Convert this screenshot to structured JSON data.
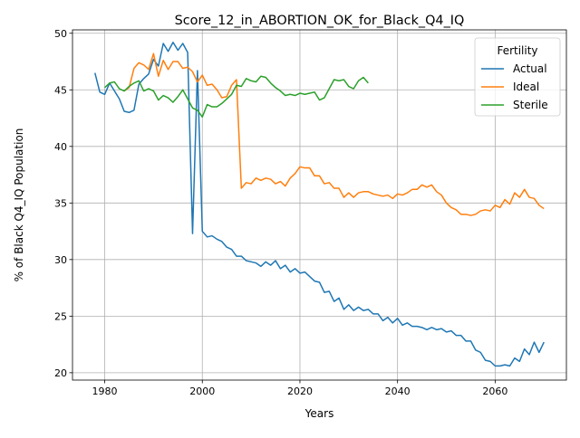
{
  "chart_data": {
    "type": "line",
    "title": "Score_12_in_ABORTION_OK_for_Black_Q4_IQ",
    "xlabel": "Years",
    "ylabel": "% of Black Q4_IQ Population",
    "xlim": [
      1973.4,
      2074.6
    ],
    "ylim": [
      19.35,
      50.3
    ],
    "xticks": [
      1980,
      2000,
      2020,
      2040,
      2060
    ],
    "yticks": [
      20,
      25,
      30,
      35,
      40,
      45,
      50
    ],
    "grid": true,
    "legend": {
      "title": "Fertility",
      "placement": "upper right"
    },
    "series": [
      {
        "name": "Actual",
        "color": "#1f77b4",
        "x": [
          1978,
          1979,
          1980,
          1981,
          1982,
          1983,
          1984,
          1985,
          1986,
          1987,
          1988,
          1989,
          1990,
          1991,
          1992,
          1993,
          1994,
          1995,
          1996,
          1997,
          1998,
          1999,
          2000,
          2001,
          2002,
          2003,
          2004,
          2005,
          2006,
          2007,
          2008,
          2009,
          2010,
          2011,
          2012,
          2013,
          2014,
          2015,
          2016,
          2017,
          2018,
          2019,
          2020,
          2021,
          2022,
          2023,
          2024,
          2025,
          2026,
          2027,
          2028,
          2029,
          2030,
          2031,
          2032,
          2033,
          2034,
          2035,
          2036,
          2037,
          2038,
          2039,
          2040,
          2041,
          2042,
          2043,
          2044,
          2045,
          2046,
          2047,
          2048,
          2049,
          2050,
          2051,
          2052,
          2053,
          2054,
          2055,
          2056,
          2057,
          2058,
          2059,
          2060,
          2061,
          2062,
          2063,
          2064,
          2065,
          2066,
          2067,
          2068,
          2069,
          2070
        ],
        "values": [
          46.5,
          44.8,
          44.6,
          45.6,
          44.9,
          44.2,
          43.1,
          43.0,
          43.2,
          45.5,
          46.0,
          46.4,
          47.7,
          47.1,
          49.1,
          48.4,
          49.2,
          48.5,
          49.1,
          48.3,
          32.3,
          46.7,
          32.5,
          32.0,
          32.1,
          31.8,
          31.6,
          31.1,
          30.9,
          30.3,
          30.3,
          29.9,
          29.8,
          29.7,
          29.4,
          29.8,
          29.5,
          29.9,
          29.2,
          29.5,
          28.9,
          29.2,
          28.8,
          28.9,
          28.5,
          28.1,
          28.0,
          27.1,
          27.2,
          26.3,
          26.6,
          25.6,
          26.0,
          25.5,
          25.8,
          25.5,
          25.6,
          25.2,
          25.2,
          24.6,
          24.9,
          24.4,
          24.8,
          24.2,
          24.4,
          24.1,
          24.1,
          24.0,
          23.8,
          24.0,
          23.8,
          23.9,
          23.6,
          23.7,
          23.3,
          23.3,
          22.8,
          22.8,
          22.0,
          21.8,
          21.1,
          21.0,
          20.6,
          20.6,
          20.7,
          20.6,
          21.3,
          21.0,
          22.1,
          21.6,
          22.7,
          21.8,
          22.7
        ]
      },
      {
        "name": "Ideal",
        "color": "#ff7f0e",
        "x": [
          1984,
          1985,
          1986,
          1987,
          1988,
          1989,
          1990,
          1991,
          1992,
          1993,
          1994,
          1995,
          1996,
          1997,
          1998,
          1999,
          2000,
          2001,
          2002,
          2003,
          2004,
          2005,
          2006,
          2007,
          2008,
          2009,
          2010,
          2011,
          2012,
          2013,
          2014,
          2015,
          2016,
          2017,
          2018,
          2019,
          2020,
          2021,
          2022,
          2023,
          2024,
          2025,
          2026,
          2027,
          2028,
          2029,
          2030,
          2031,
          2032,
          2033,
          2034,
          2035,
          2036,
          2037,
          2038,
          2039,
          2040,
          2041,
          2042,
          2043,
          2044,
          2045,
          2046,
          2047,
          2048,
          2049,
          2050,
          2051,
          2052,
          2053,
          2054,
          2055,
          2056,
          2057,
          2058,
          2059,
          2060,
          2061,
          2062,
          2063,
          2064,
          2065,
          2066,
          2067,
          2068,
          2069,
          2070
        ],
        "values": [
          44.9,
          45.2,
          46.9,
          47.4,
          47.2,
          46.8,
          48.2,
          46.2,
          47.6,
          46.8,
          47.5,
          47.5,
          46.9,
          47.0,
          46.6,
          45.7,
          46.3,
          45.4,
          45.5,
          45.0,
          44.3,
          44.4,
          45.4,
          45.9,
          36.3,
          36.8,
          36.7,
          37.2,
          37.0,
          37.2,
          37.1,
          36.7,
          36.9,
          36.5,
          37.2,
          37.6,
          38.2,
          38.1,
          38.1,
          37.4,
          37.4,
          36.7,
          36.8,
          36.3,
          36.3,
          35.5,
          35.9,
          35.5,
          35.9,
          36.0,
          36.0,
          35.8,
          35.7,
          35.6,
          35.7,
          35.4,
          35.8,
          35.7,
          35.9,
          36.2,
          36.2,
          36.6,
          36.4,
          36.6,
          36.0,
          35.7,
          35.0,
          34.6,
          34.4,
          34.0,
          34.0,
          33.9,
          34.0,
          34.3,
          34.4,
          34.3,
          34.8,
          34.6,
          35.3,
          34.9,
          35.9,
          35.5,
          36.2,
          35.5,
          35.4,
          34.8,
          34.5
        ]
      },
      {
        "name": "Sterile",
        "color": "#2ca02c",
        "x": [
          1980,
          1981,
          1982,
          1983,
          1984,
          1985,
          1986,
          1987,
          1988,
          1989,
          1990,
          1991,
          1992,
          1993,
          1994,
          1995,
          1996,
          1997,
          1998,
          1999,
          2000,
          2001,
          2002,
          2003,
          2004,
          2005,
          2006,
          2007,
          2008,
          2009,
          2010,
          2011,
          2012,
          2013,
          2014,
          2015,
          2016,
          2017,
          2018,
          2019,
          2020,
          2021,
          2022,
          2023,
          2024,
          2025,
          2026,
          2027,
          2028,
          2029,
          2030,
          2031,
          2032,
          2033,
          2034
        ],
        "values": [
          45.2,
          45.6,
          45.7,
          45.1,
          44.9,
          45.3,
          45.6,
          45.8,
          44.9,
          45.1,
          44.9,
          44.1,
          44.5,
          44.3,
          43.9,
          44.4,
          45.0,
          44.2,
          43.4,
          43.2,
          42.6,
          43.7,
          43.5,
          43.5,
          43.8,
          44.2,
          44.6,
          45.4,
          45.3,
          46.0,
          45.8,
          45.7,
          46.2,
          46.1,
          45.6,
          45.2,
          44.9,
          44.5,
          44.6,
          44.5,
          44.7,
          44.6,
          44.7,
          44.8,
          44.1,
          44.3,
          45.1,
          45.9,
          45.8,
          45.9,
          45.3,
          45.1,
          45.8,
          46.1,
          45.6
        ]
      }
    ]
  }
}
